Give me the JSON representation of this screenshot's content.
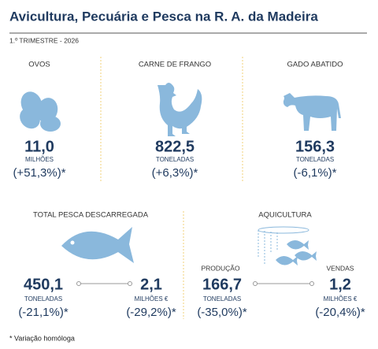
{
  "header": {
    "title": "Avicultura, Pecuária e Pesca na R. A. da Madeira",
    "subtitle": "1.º TRIMESTRE - 2026"
  },
  "items": [
    {
      "label": "OVOS",
      "value": "11,0",
      "unit": "MILHÕES",
      "change": "(+51,3%)*"
    },
    {
      "label": "CARNE DE FRANGO",
      "value": "822,5",
      "unit": "TONELADAS",
      "change": "(+6,3%)*"
    },
    {
      "label": "GADO ABATIDO",
      "value": "156,3",
      "unit": "TONELADAS",
      "change": "(-6,1%)*"
    }
  ],
  "fishing": {
    "label": "TOTAL PESCA DESCARREGADA",
    "items": [
      {
        "value": "450,1",
        "unit": "TONELADAS",
        "change": "(-21,1%)*"
      },
      {
        "value": "2,1",
        "unit": "MILHÕES €",
        "change": "(-29,2%)*"
      }
    ]
  },
  "aquaculture": {
    "label": "AQUICULTURA",
    "items": [
      {
        "label": "PRODUÇÃO",
        "value": "166,7",
        "unit": "TONELADAS",
        "change": "(-35,0%)*"
      },
      {
        "label": "VENDAS",
        "value": "1,2",
        "unit": "MILHÕES €",
        "change": "(-20,4%)*"
      }
    ]
  },
  "footnote": "* Variação homóloga"
}
